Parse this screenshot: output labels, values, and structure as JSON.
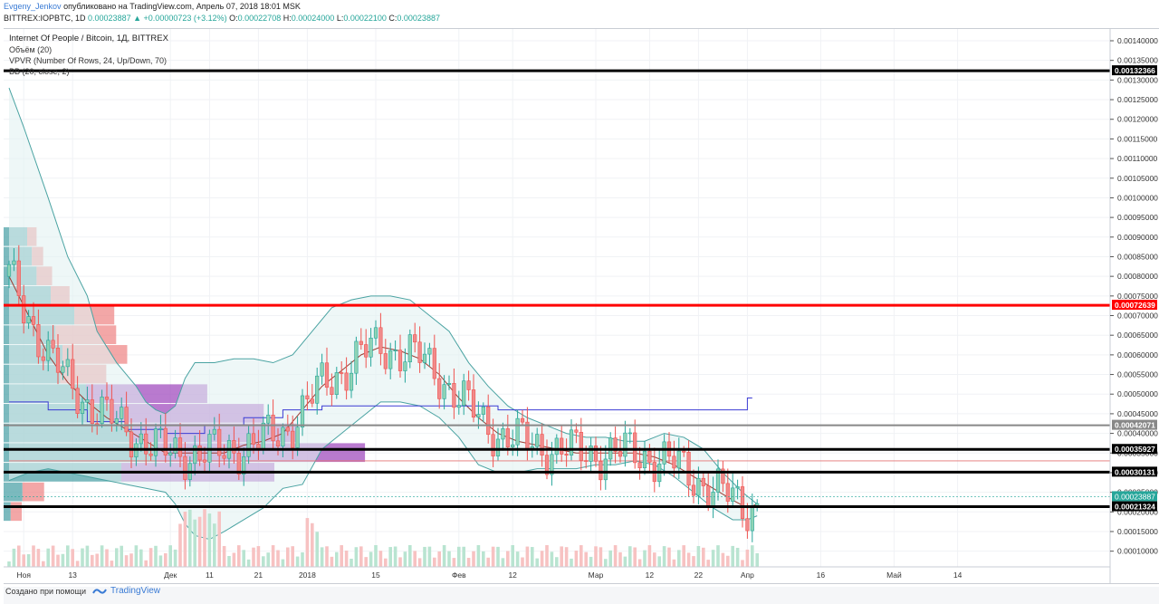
{
  "header": {
    "author": "Evgeny_Jenkov",
    "published": "опубликовано на TradingView.com, Апрель 07, 2018 18:01 MSK",
    "symbol": "BITTREX:IOPBTC, 1D",
    "last": "0.00023887",
    "change": "+0.00000723 (+3.12%)",
    "o_label": "O:",
    "o_value": "0.00022708",
    "h_label": "H:",
    "h_value": "0.00024000",
    "l_label": "L:",
    "l_value": "0.00022100",
    "c_label": "C:",
    "c_value": "0.00023887"
  },
  "legend": {
    "title": "Internet Of People / Bitcoin, 1Д, BITTREX",
    "volume": "Объём (20)",
    "vpvr": "VPVR (Number Of Rows, 24, Up/Down, 70)",
    "bb": "BB (20, close, 2)"
  },
  "footer": {
    "made_with": "Создано при помощи",
    "brand": "TradingView"
  },
  "colors": {
    "up": "#26a69a",
    "down": "#ef5350",
    "bb_band": "#4aa3a2",
    "bb_mid": "#9c3c32",
    "vpvr_up": "#4fa3a8",
    "vpvr_down": "#ef8a8a",
    "vpvr_va_up": "#a24ebf",
    "vpvr_poc": "#3b3bd4",
    "level_red": "#ff0000",
    "level_black": "#000000",
    "level_gray": "#888888"
  },
  "chart_data": {
    "type": "candlestick",
    "symbol": "IOPBTC",
    "timeframe": "1D",
    "y_axis": {
      "range": [
        6e-05,
        0.00143
      ],
      "ticks": [
        "0.00140000",
        "0.00135000",
        "0.00130000",
        "0.00125000",
        "0.00120000",
        "0.00115000",
        "0.00110000",
        "0.00105000",
        "0.00100000",
        "0.00095000",
        "0.00090000",
        "0.00085000",
        "0.00080000",
        "0.00075000",
        "0.00070000",
        "0.00065000",
        "0.00060000",
        "0.00055000",
        "0.00050000",
        "0.00045000",
        "0.00040000",
        "0.00035000",
        "0.00030000",
        "0.00025000",
        "0.00020000",
        "0.00015000",
        "0.00010000"
      ]
    },
    "x_axis": {
      "ticks": [
        {
          "label": "Ноя",
          "day": 3
        },
        {
          "label": "13",
          "day": 13
        },
        {
          "label": "Дек",
          "day": 33
        },
        {
          "label": "11",
          "day": 41
        },
        {
          "label": "21",
          "day": 51
        },
        {
          "label": "2018",
          "day": 61
        },
        {
          "label": "15",
          "day": 75
        },
        {
          "label": "Фев",
          "day": 92
        },
        {
          "label": "12",
          "day": 103
        },
        {
          "label": "Мар",
          "day": 120
        },
        {
          "label": "12",
          "day": 131
        },
        {
          "label": "22",
          "day": 141
        },
        {
          "label": "Апр",
          "day": 151
        },
        {
          "label": "16",
          "day": 166
        },
        {
          "label": "Май",
          "day": 181
        },
        {
          "label": "14",
          "day": 194
        }
      ]
    },
    "horizontal_levels": [
      {
        "value": 0.00132366,
        "label": "0.00132366",
        "color": "#000000"
      },
      {
        "value": 0.00072639,
        "label": "0.00072639",
        "color": "#ff0000"
      },
      {
        "value": 0.00042071,
        "label": "0.00042071",
        "color": "#888888"
      },
      {
        "value": 0.00035927,
        "label": "0.00035927",
        "color": "#000000"
      },
      {
        "value": 0.00030131,
        "label": "0.00030131",
        "color": "#000000"
      },
      {
        "value": 0.00021324,
        "label": "0.00021324",
        "color": "#000000"
      }
    ],
    "last_price": {
      "value": 0.00023887,
      "label": "0.00023887"
    },
    "bb_upper": [
      [
        0,
        0.00128
      ],
      [
        3,
        0.00118
      ],
      [
        8,
        0.001
      ],
      [
        12,
        0.00085
      ],
      [
        16,
        0.00075
      ],
      [
        18,
        0.00066
      ],
      [
        20,
        0.00062
      ],
      [
        22,
        0.00058
      ],
      [
        24,
        0.00055
      ],
      [
        26,
        0.00052
      ],
      [
        28,
        0.00048
      ],
      [
        30,
        0.00046
      ],
      [
        32,
        0.00045
      ],
      [
        34,
        0.00047
      ],
      [
        36,
        0.00054
      ],
      [
        38,
        0.00058
      ],
      [
        42,
        0.00058
      ],
      [
        46,
        0.00059
      ],
      [
        50,
        0.00059
      ],
      [
        54,
        0.00058
      ],
      [
        58,
        0.0006
      ],
      [
        62,
        0.00066
      ],
      [
        66,
        0.00072
      ],
      [
        70,
        0.00074
      ],
      [
        74,
        0.00075
      ],
      [
        78,
        0.00075
      ],
      [
        82,
        0.00074
      ],
      [
        86,
        0.0007
      ],
      [
        90,
        0.00066
      ],
      [
        94,
        0.00058
      ],
      [
        98,
        0.00052
      ],
      [
        102,
        0.00047
      ],
      [
        106,
        0.00044
      ],
      [
        110,
        0.00042
      ],
      [
        114,
        0.0004
      ],
      [
        118,
        0.00039
      ],
      [
        122,
        0.00039
      ],
      [
        126,
        0.00038
      ],
      [
        130,
        0.00038
      ],
      [
        134,
        0.0004
      ],
      [
        138,
        0.00039
      ],
      [
        142,
        0.00036
      ],
      [
        146,
        0.0003
      ],
      [
        150,
        0.00025
      ],
      [
        153,
        0.00022
      ]
    ],
    "bb_lower": [
      [
        0,
        0.00028
      ],
      [
        4,
        0.0003
      ],
      [
        8,
        0.00031
      ],
      [
        12,
        0.0003
      ],
      [
        16,
        0.00029
      ],
      [
        20,
        0.00028
      ],
      [
        24,
        0.00027
      ],
      [
        28,
        0.00026
      ],
      [
        32,
        0.00025
      ],
      [
        34,
        0.00022
      ],
      [
        36,
        0.00017
      ],
      [
        38,
        0.00014
      ],
      [
        41,
        0.00013
      ],
      [
        44,
        0.00015
      ],
      [
        48,
        0.00018
      ],
      [
        52,
        0.00021
      ],
      [
        56,
        0.00026
      ],
      [
        60,
        0.00027
      ],
      [
        64,
        0.00036
      ],
      [
        68,
        0.0004
      ],
      [
        72,
        0.00044
      ],
      [
        76,
        0.00048
      ],
      [
        80,
        0.00048
      ],
      [
        84,
        0.00047
      ],
      [
        88,
        0.00044
      ],
      [
        92,
        0.00039
      ],
      [
        96,
        0.00032
      ],
      [
        100,
        0.0003
      ],
      [
        104,
        0.0003
      ],
      [
        108,
        0.00031
      ],
      [
        112,
        0.00031
      ],
      [
        116,
        0.00031
      ],
      [
        120,
        0.00032
      ],
      [
        124,
        0.00032
      ],
      [
        128,
        0.00033
      ],
      [
        132,
        0.00032
      ],
      [
        136,
        0.00029
      ],
      [
        140,
        0.00025
      ],
      [
        144,
        0.00021
      ],
      [
        148,
        0.00018
      ],
      [
        151,
        0.00018
      ],
      [
        153,
        0.00019
      ]
    ],
    "bb_basis": [
      [
        0,
        0.0008
      ],
      [
        4,
        0.0007
      ],
      [
        8,
        0.0006
      ],
      [
        12,
        0.00053
      ],
      [
        16,
        0.00048
      ],
      [
        20,
        0.00044
      ],
      [
        24,
        0.00041
      ],
      [
        28,
        0.00038
      ],
      [
        32,
        0.00035
      ],
      [
        36,
        0.00035
      ],
      [
        40,
        0.00035
      ],
      [
        44,
        0.00035
      ],
      [
        48,
        0.00037
      ],
      [
        52,
        0.00038
      ],
      [
        56,
        0.0004
      ],
      [
        60,
        0.00046
      ],
      [
        64,
        0.00052
      ],
      [
        68,
        0.00056
      ],
      [
        72,
        0.0006
      ],
      [
        76,
        0.00062
      ],
      [
        80,
        0.00061
      ],
      [
        84,
        0.00059
      ],
      [
        88,
        0.00055
      ],
      [
        92,
        0.00049
      ],
      [
        96,
        0.00044
      ],
      [
        100,
        0.0004
      ],
      [
        104,
        0.00038
      ],
      [
        108,
        0.00037
      ],
      [
        112,
        0.00036
      ],
      [
        116,
        0.00035
      ],
      [
        120,
        0.00035
      ],
      [
        124,
        0.00035
      ],
      [
        128,
        0.00035
      ],
      [
        132,
        0.00034
      ],
      [
        136,
        0.00032
      ],
      [
        140,
        0.00029
      ],
      [
        144,
        0.00026
      ],
      [
        148,
        0.00023
      ],
      [
        151,
        0.00021
      ],
      [
        153,
        0.00022
      ]
    ],
    "poc_line": [
      [
        0,
        0.00048
      ],
      [
        8,
        0.00046
      ],
      [
        16,
        0.00043
      ],
      [
        24,
        0.00041
      ],
      [
        32,
        0.0004
      ],
      [
        40,
        0.00042
      ],
      [
        48,
        0.00044
      ],
      [
        56,
        0.00046
      ],
      [
        64,
        0.00047
      ],
      [
        76,
        0.00047
      ],
      [
        100,
        0.00046
      ],
      [
        126,
        0.00046
      ],
      [
        150,
        0.00046
      ],
      [
        151,
        0.00049
      ],
      [
        152,
        0.00049
      ]
    ],
    "vpvr": [
      {
        "price": 0.0009,
        "up": 0.1,
        "down": 0.05
      },
      {
        "price": 0.00085,
        "up": 0.12,
        "down": 0.06
      },
      {
        "price": 0.0008,
        "up": 0.14,
        "down": 0.08
      },
      {
        "price": 0.00075,
        "up": 0.2,
        "down": 0.1
      },
      {
        "price": 0.0007,
        "up": 0.3,
        "down": 0.2
      },
      {
        "price": 0.00065,
        "up": 0.22,
        "down": 0.28
      },
      {
        "price": 0.0006,
        "up": 0.25,
        "down": 0.3
      },
      {
        "price": 0.00055,
        "up": 0.24,
        "down": 0.22
      },
      {
        "price": 0.0005,
        "up": 0.35,
        "down": 0.55
      },
      {
        "price": 0.00045,
        "up": 0.45,
        "down": 0.7
      },
      {
        "price": 0.0004,
        "up": 0.55,
        "down": 0.75
      },
      {
        "price": 0.00035,
        "up": 0.65,
        "down": 0.95
      },
      {
        "price": 0.0003,
        "up": 0.5,
        "down": 0.7
      },
      {
        "price": 0.00025,
        "up": 0.08,
        "down": 0.1
      },
      {
        "price": 0.0002,
        "up": 0.03,
        "down": 0.05
      }
    ]
  }
}
